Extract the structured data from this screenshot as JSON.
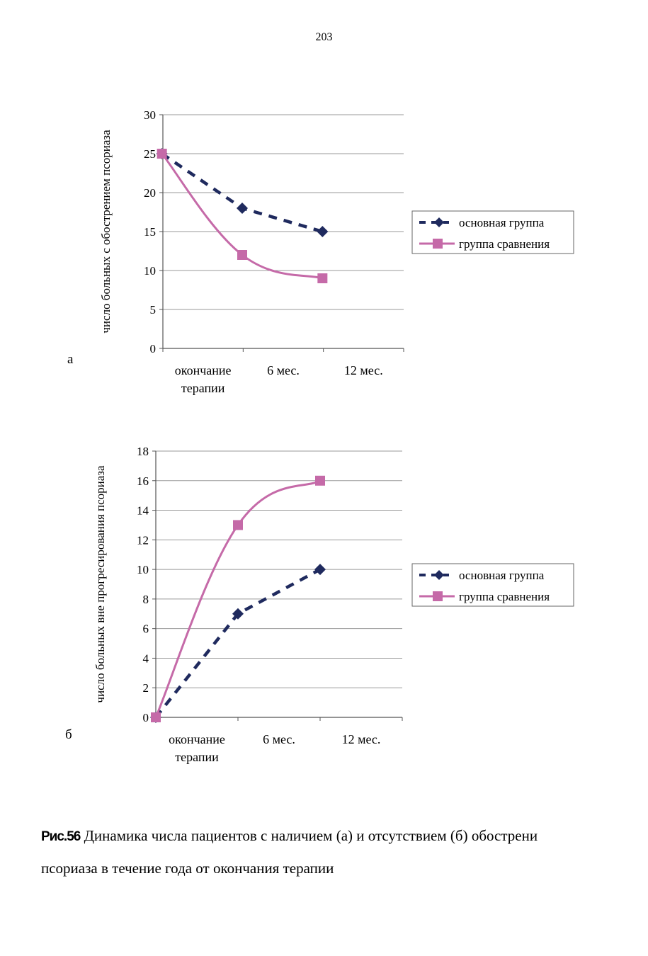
{
  "page_number": "203",
  "caption": {
    "figure_label": "Рис.56",
    "line1": "Динамика числа пациентов с наличием (а) и отсутствием (б) обострени",
    "line2": "псориаза в течение года от окончания терапии"
  },
  "colors": {
    "main": "#1f2a5e",
    "comparison": "#c56aa8",
    "grid": "#9a9a9a"
  },
  "chart_data": [
    {
      "type": "line",
      "panel_label": "а",
      "ylabel": "число больных с обострением псориаза",
      "categories": [
        "окончание терапии",
        "6 мес.",
        "12 мес."
      ],
      "category_lines": [
        [
          "окончание",
          "терапии"
        ],
        [
          "6 мес."
        ],
        [
          "12 мес."
        ]
      ],
      "ylim": [
        0,
        30
      ],
      "yticks": [
        0,
        5,
        10,
        15,
        20,
        25,
        30
      ],
      "grid": true,
      "legend_position": "right",
      "series": [
        {
          "name": "основная группа",
          "values": [
            25,
            18,
            15
          ],
          "style": "dashed",
          "marker": "diamond",
          "color": "#1f2a5e"
        },
        {
          "name": "группа сравнения",
          "values": [
            25,
            12,
            9
          ],
          "style": "smooth",
          "marker": "square",
          "color": "#c56aa8"
        }
      ]
    },
    {
      "type": "line",
      "panel_label": "б",
      "ylabel": "число больных вне прогресирования псориаза",
      "categories": [
        "окончание терапии",
        "6 мес.",
        "12 мес."
      ],
      "category_lines": [
        [
          "окончание",
          "терапии"
        ],
        [
          "6 мес."
        ],
        [
          "12 мес."
        ]
      ],
      "ylim": [
        0,
        18
      ],
      "yticks": [
        0,
        2,
        4,
        6,
        8,
        10,
        12,
        14,
        16,
        18
      ],
      "grid": true,
      "legend_position": "right",
      "series": [
        {
          "name": "основная группа",
          "values": [
            0,
            7,
            10
          ],
          "style": "dashed",
          "marker": "diamond",
          "color": "#1f2a5e"
        },
        {
          "name": "группа сравнения",
          "values": [
            0,
            13,
            16
          ],
          "style": "smooth",
          "marker": "square",
          "color": "#c56aa8"
        }
      ]
    }
  ]
}
